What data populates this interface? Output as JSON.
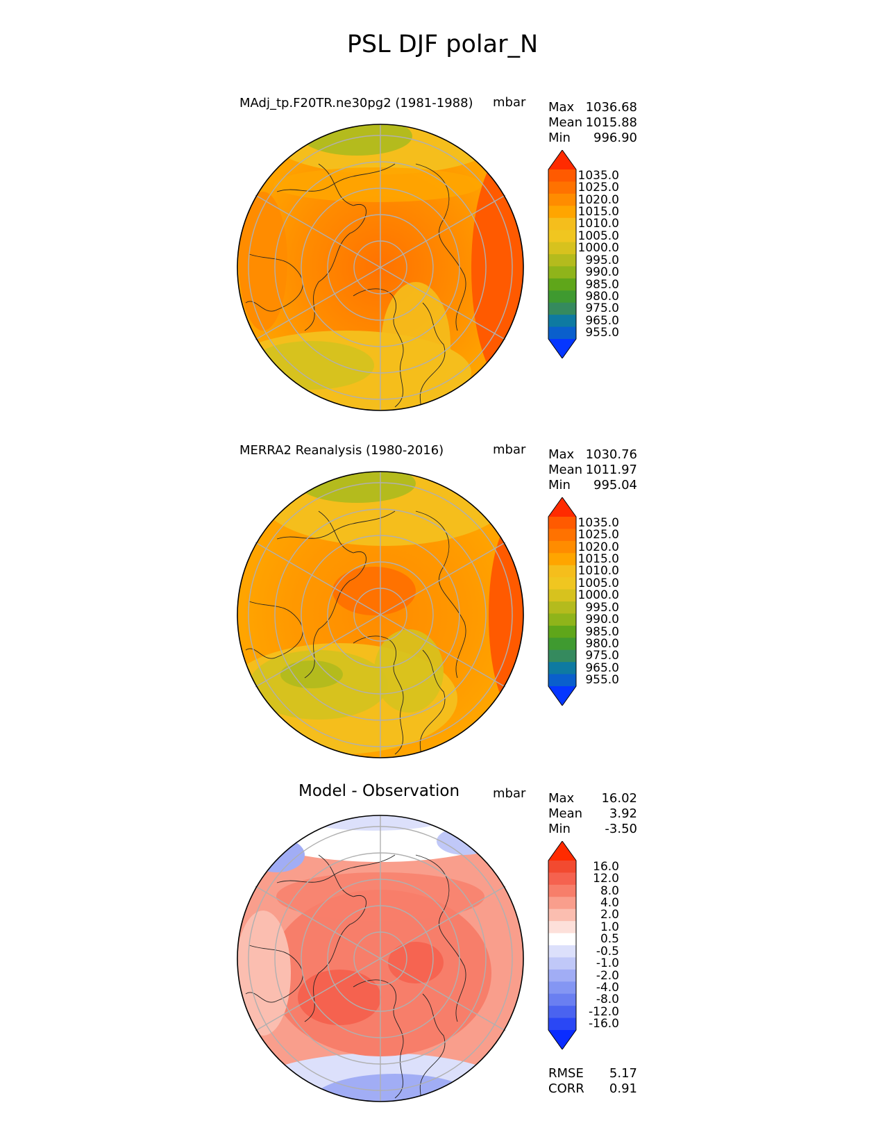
{
  "figure": {
    "title": "PSL DJF polar_N"
  },
  "panels": [
    {
      "title": "MAdj_tp.F20TR.ne30pg2 (1981-1988)",
      "units": "mbar",
      "stats": {
        "max_label": "Max",
        "max": "1036.68",
        "mean_label": "Mean",
        "mean": "1015.88",
        "min_label": "Min",
        "min": "996.90"
      }
    },
    {
      "title": "MERRA2 Reanalysis (1980-2016)",
      "units": "mbar",
      "stats": {
        "max_label": "Max",
        "max": "1030.76",
        "mean_label": "Mean",
        "mean": "1011.97",
        "min_label": "Min",
        "min": "995.04"
      }
    },
    {
      "title": "Model - Observation",
      "units": "mbar",
      "stats": {
        "max_label": "Max",
        "max": "16.02",
        "mean_label": "Mean",
        "mean": "3.92",
        "min_label": "Min",
        "min": "-3.50"
      },
      "extra": {
        "rmse_label": "RMSE",
        "rmse": "5.17",
        "corr_label": "CORR",
        "corr": "0.91"
      }
    }
  ],
  "colorbars": {
    "abs": {
      "ticks": [
        "1035.0",
        "1025.0",
        "1020.0",
        "1015.0",
        "1010.0",
        "1005.0",
        "1000.0",
        "995.0",
        "990.0",
        "985.0",
        "980.0",
        "975.0",
        "965.0",
        "955.0"
      ],
      "colors": [
        "#ff2b00",
        "#ff5a00",
        "#ff7200",
        "#ff8c00",
        "#ffa500",
        "#f5be1c",
        "#f0c620",
        "#d7c21e",
        "#b4bb1d",
        "#8fb41a",
        "#5fa61a",
        "#3f9a30",
        "#358a5e",
        "#0e7aa1",
        "#0a5fcc",
        "#0536ff"
      ]
    },
    "diff": {
      "ticks": [
        "16.0",
        "12.0",
        "8.0",
        "4.0",
        "2.0",
        "1.0",
        "0.5",
        "-0.5",
        "-1.0",
        "-2.0",
        "-4.0",
        "-8.0",
        "-12.0",
        "-16.0"
      ],
      "colors": [
        "#ff2b00",
        "#f24a30",
        "#f5624f",
        "#f77e6a",
        "#f99e8c",
        "#fbbeb0",
        "#fde0da",
        "#ffffff",
        "#dce0fb",
        "#c0c8f8",
        "#a1adf5",
        "#8496f3",
        "#6a7ff1",
        "#4a63f0",
        "#2a47f5",
        "#0a2cff"
      ]
    }
  },
  "chart_data": [
    {
      "type": "heatmap",
      "projection": "north polar stereographic",
      "variable": "PSL",
      "season": "DJF",
      "title": "MAdj_tp.F20TR.ne30pg2 (1981-1988)",
      "units": "mbar",
      "levels": [
        955,
        965,
        975,
        980,
        985,
        990,
        995,
        1000,
        1005,
        1010,
        1015,
        1020,
        1025,
        1035
      ],
      "max": 1036.68,
      "mean": 1015.88,
      "min": 996.9
    },
    {
      "type": "heatmap",
      "projection": "north polar stereographic",
      "variable": "PSL",
      "season": "DJF",
      "title": "MERRA2 Reanalysis (1980-2016)",
      "units": "mbar",
      "levels": [
        955,
        965,
        975,
        980,
        985,
        990,
        995,
        1000,
        1005,
        1010,
        1015,
        1020,
        1025,
        1035
      ],
      "max": 1030.76,
      "mean": 1011.97,
      "min": 995.04
    },
    {
      "type": "heatmap",
      "projection": "north polar stereographic",
      "variable": "PSL",
      "season": "DJF",
      "title": "Model - Observation",
      "units": "mbar",
      "levels": [
        -16,
        -12,
        -8,
        -4,
        -2,
        -1,
        -0.5,
        0.5,
        1,
        2,
        4,
        8,
        12,
        16
      ],
      "max": 16.02,
      "mean": 3.92,
      "min": -3.5,
      "rmse": 5.17,
      "corr": 0.91
    }
  ]
}
